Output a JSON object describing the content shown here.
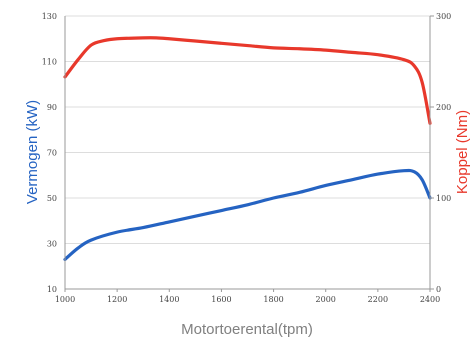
{
  "chart_data": {
    "type": "line",
    "title": "",
    "xlabel": "Motortoerental(tpm)",
    "ylabel_left": "Vermogen (kW)",
    "ylabel_right": "Koppel (Nm)",
    "xlim": [
      1000,
      2400
    ],
    "ylim_left": [
      10,
      130
    ],
    "ylim_right": [
      0,
      300
    ],
    "x_ticks": [
      "1000",
      "1200",
      "1400",
      "1600",
      "1800",
      "2000",
      "2200",
      "2400"
    ],
    "y_left_ticks": [
      "10",
      "30",
      "50",
      "70",
      "90",
      "110",
      "130"
    ],
    "y_right_ticks": [
      "0",
      "100",
      "200",
      "300"
    ],
    "grid": "horizontal",
    "series": [
      {
        "name": "Vermogen (kW)",
        "axis": "left",
        "color": "#2563c2",
        "points": [
          [
            1000,
            23
          ],
          [
            1050,
            28
          ],
          [
            1100,
            31.5
          ],
          [
            1200,
            35
          ],
          [
            1300,
            37
          ],
          [
            1400,
            39.5
          ],
          [
            1500,
            42
          ],
          [
            1600,
            44.5
          ],
          [
            1700,
            47
          ],
          [
            1800,
            50
          ],
          [
            1900,
            52.5
          ],
          [
            2000,
            55.5
          ],
          [
            2100,
            58
          ],
          [
            2200,
            60.5
          ],
          [
            2300,
            62
          ],
          [
            2340,
            61.5
          ],
          [
            2370,
            58
          ],
          [
            2400,
            50
          ]
        ]
      },
      {
        "name": "Koppel (Nm)",
        "axis": "right",
        "color": "#e8382b",
        "points": [
          [
            1000,
            233
          ],
          [
            1050,
            252
          ],
          [
            1100,
            268
          ],
          [
            1150,
            273
          ],
          [
            1200,
            275
          ],
          [
            1300,
            276
          ],
          [
            1350,
            276
          ],
          [
            1400,
            275
          ],
          [
            1500,
            272.5
          ],
          [
            1600,
            270
          ],
          [
            1700,
            267.5
          ],
          [
            1800,
            265
          ],
          [
            1900,
            264
          ],
          [
            2000,
            262.5
          ],
          [
            2100,
            260
          ],
          [
            2200,
            257.5
          ],
          [
            2300,
            252
          ],
          [
            2340,
            245
          ],
          [
            2370,
            227
          ],
          [
            2400,
            182
          ]
        ]
      }
    ]
  }
}
